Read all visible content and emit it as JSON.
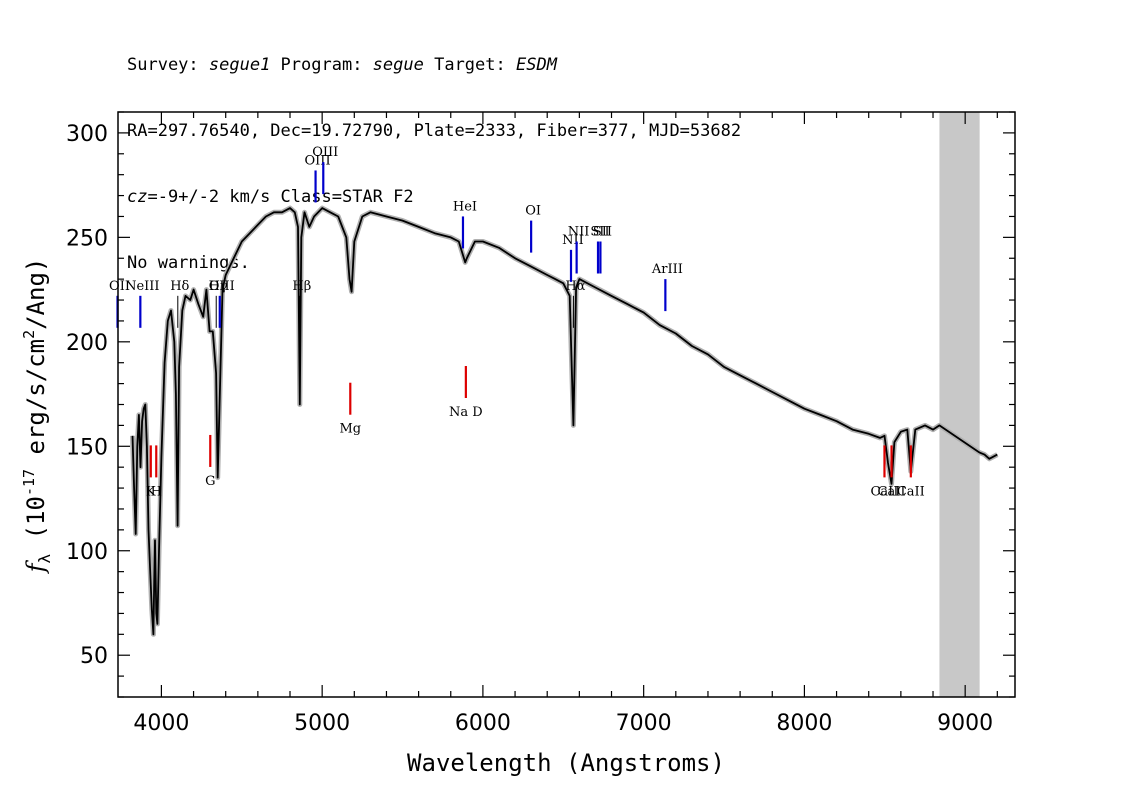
{
  "header": {
    "line1": {
      "survey_label": "Survey: ",
      "survey": "segue1",
      "program_label": " Program: ",
      "program": "segue",
      "target_label": " Target: ",
      "target": "ESDM"
    },
    "line2": "RA=297.76540, Dec=19.72790, Plate=2333, Fiber=377, MJD=53682",
    "line3": {
      "cz_label": "cz",
      "cz_value": "=-9+/-2",
      "cz_suffix": " km/s Class=STAR F2"
    },
    "line4": "No warnings."
  },
  "chart_data": {
    "type": "line",
    "title": "",
    "xlabel": "Wavelength (Angstroms)",
    "ylabel": "f_λ (10^-17 erg/s/cm²/Ang)",
    "ylabel_parts": {
      "f": "f",
      "sub": "λ",
      "open": " (10",
      "exp": "-17",
      "mid": " erg/s/cm",
      "sq": "2",
      "close": "/Ang)"
    },
    "xlim": [
      3730,
      9310
    ],
    "ylim": [
      30,
      310
    ],
    "xticks": [
      4000,
      5000,
      6000,
      7000,
      8000,
      9000
    ],
    "yticks": [
      50,
      100,
      150,
      200,
      250,
      300
    ],
    "masked_region": [
      8840,
      9090
    ],
    "series": [
      {
        "x": [
          3820,
          3830,
          3840,
          3850,
          3860,
          3870,
          3880,
          3890,
          3900,
          3910,
          3920,
          3930,
          3940,
          3950,
          3955,
          3960,
          3968,
          3975,
          3985,
          4000,
          4020,
          4040,
          4060,
          4080,
          4090,
          4101,
          4110,
          4130,
          4150,
          4180,
          4200,
          4230,
          4260,
          4280,
          4300,
          4320,
          4340,
          4350,
          4380,
          4400,
          4450,
          4500,
          4550,
          4600,
          4650,
          4700,
          4750,
          4800,
          4830,
          4850,
          4861,
          4870,
          4890,
          4920,
          4950,
          5000,
          5050,
          5100,
          5150,
          5170,
          5183,
          5200,
          5250,
          5300,
          5400,
          5500,
          5600,
          5700,
          5800,
          5850,
          5890,
          5900,
          5950,
          6000,
          6100,
          6200,
          6300,
          6400,
          6450,
          6500,
          6540,
          6563,
          6580,
          6600,
          6700,
          6800,
          6900,
          7000,
          7100,
          7200,
          7300,
          7400,
          7500,
          7600,
          7700,
          7800,
          7900,
          8000,
          8100,
          8200,
          8300,
          8400,
          8470,
          8498,
          8520,
          8542,
          8560,
          8600,
          8640,
          8662,
          8690,
          8750,
          8800,
          8840,
          9090,
          9120,
          9150,
          9200
        ],
        "y": [
          155,
          130,
          108,
          150,
          165,
          140,
          162,
          168,
          170,
          150,
          110,
          90,
          72,
          60,
          85,
          105,
          70,
          65,
          100,
          145,
          190,
          210,
          215,
          200,
          175,
          112,
          188,
          215,
          222,
          220,
          225,
          218,
          212,
          225,
          205,
          205,
          185,
          135,
          225,
          232,
          240,
          248,
          252,
          256,
          260,
          262,
          262,
          264,
          262,
          255,
          170,
          250,
          262,
          255,
          260,
          264,
          262,
          260,
          250,
          230,
          224,
          248,
          260,
          262,
          260,
          258,
          255,
          252,
          250,
          248,
          238,
          240,
          248,
          248,
          245,
          240,
          236,
          232,
          230,
          228,
          222,
          160,
          226,
          230,
          226,
          222,
          218,
          214,
          208,
          204,
          198,
          194,
          188,
          184,
          180,
          176,
          172,
          168,
          165,
          162,
          158,
          156,
          154,
          155,
          142,
          132,
          152,
          157,
          158,
          138,
          158,
          160,
          158,
          160,
          147,
          146,
          144,
          146
        ]
      }
    ],
    "emission_lines": [
      {
        "name": "OII",
        "wave": 3727
      },
      {
        "name": "NeIII",
        "wave": 3869
      },
      {
        "name": "Hδ",
        "wave": 4102
      },
      {
        "name": "Hγ",
        "wave": 4341
      },
      {
        "name": "OIII",
        "wave": 4363
      },
      {
        "name": "Hβ",
        "wave": 4861
      },
      {
        "name": "OIII",
        "wave": 4959
      },
      {
        "name": "OIII",
        "wave": 5007
      },
      {
        "name": "HeI",
        "wave": 5876
      },
      {
        "name": "OI",
        "wave": 6300
      },
      {
        "name": "NII",
        "wave": 6548
      },
      {
        "name": "Hα",
        "wave": 6563
      },
      {
        "name": "NII",
        "wave": 6583
      },
      {
        "name": "SII",
        "wave": 6716
      },
      {
        "name": "SII",
        "wave": 6731
      },
      {
        "name": "ArIII",
        "wave": 7135
      }
    ],
    "absorption_lines": [
      {
        "name": "K",
        "wave": 3934
      },
      {
        "name": "H",
        "wave": 3968
      },
      {
        "name": "G",
        "wave": 4304
      },
      {
        "name": "Mg",
        "wave": 5175
      },
      {
        "name": "Na D",
        "wave": 5894
      },
      {
        "name": "CaII",
        "wave": 8498
      },
      {
        "name": "CaII",
        "wave": 8542
      },
      {
        "name": "CaII",
        "wave": 8662
      }
    ]
  },
  "colors": {
    "spectrum": "#000000",
    "error_band": "#b0b0b0",
    "mask": "#c8c8c8",
    "emission": "#0000cc",
    "absorption": "#dd0000",
    "hydrogen": "#000000"
  }
}
